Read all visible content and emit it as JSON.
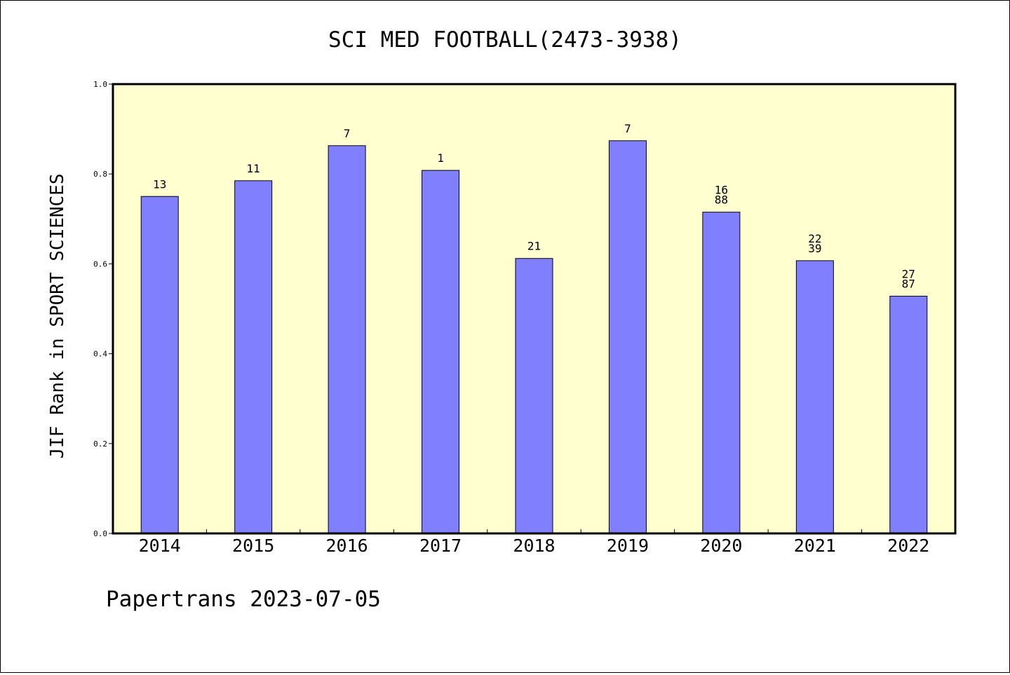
{
  "chart_data": {
    "type": "bar",
    "title": "SCI MED FOOTBALL(2473-3938)",
    "ylabel": "JIF Rank in SPORT SCIENCES",
    "xlabel": "",
    "ylim": [
      0,
      1.0
    ],
    "yticks": [
      "0.0",
      "0.2",
      "0.4",
      "0.6",
      "0.8",
      "1.0"
    ],
    "categories": [
      "2014",
      "2015",
      "2016",
      "2017",
      "2018",
      "2019",
      "2020",
      "2021",
      "2022"
    ],
    "values": [
      0.75,
      0.785,
      0.863,
      0.808,
      0.612,
      0.874,
      0.715,
      0.607,
      0.528
    ],
    "data_labels": [
      [
        "13"
      ],
      [
        "11"
      ],
      [
        "7"
      ],
      [
        "1"
      ],
      [
        "21"
      ],
      [
        "7"
      ],
      [
        "16",
        "88"
      ],
      [
        "22",
        "39"
      ],
      [
        "27",
        "87"
      ]
    ],
    "colors": {
      "bar": "#8080ff",
      "plot_background": "#ffffd0"
    },
    "grid": false,
    "legend": "none"
  },
  "footer": "Papertrans 2023-07-05"
}
